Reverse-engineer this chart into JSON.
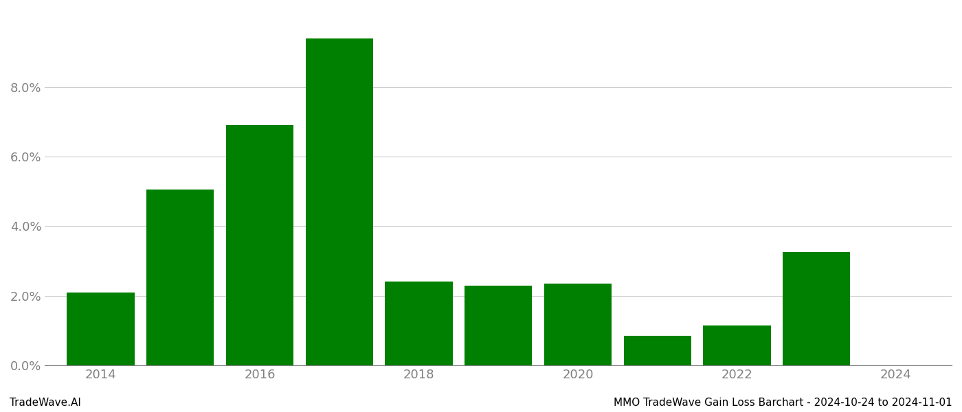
{
  "years": [
    2014,
    2015,
    2016,
    2017,
    2018,
    2019,
    2020,
    2021,
    2022,
    2023,
    2024
  ],
  "values": [
    0.021,
    0.0505,
    0.069,
    0.094,
    0.024,
    0.023,
    0.0235,
    0.0085,
    0.0115,
    0.0325,
    null
  ],
  "bar_color": "#008000",
  "background_color": "#ffffff",
  "footer_left": "TradeWave.AI",
  "footer_right": "MMO TradeWave Gain Loss Barchart - 2024-10-24 to 2024-11-01",
  "ylim": [
    0,
    0.102
  ],
  "yticks": [
    0.0,
    0.02,
    0.04,
    0.06,
    0.08
  ],
  "grid_color": "#cccccc",
  "footer_fontsize": 11,
  "tick_label_color": "#808080",
  "tick_fontsize": 13,
  "bar_width": 0.85,
  "xlim_left": 2013.3,
  "xlim_right": 2024.7,
  "xticks": [
    2014,
    2016,
    2018,
    2020,
    2022,
    2024
  ]
}
